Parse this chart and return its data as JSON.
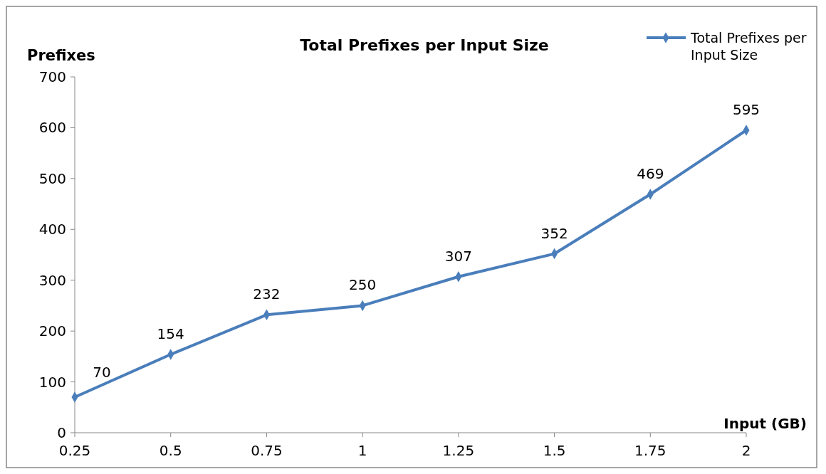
{
  "chart_data": {
    "type": "line",
    "title": "Total Prefixes per Input Size",
    "xlabel": "Input (GB)",
    "ylabel": "Prefixes",
    "x": [
      0.25,
      0.5,
      0.75,
      1,
      1.25,
      1.5,
      1.75,
      2
    ],
    "series": [
      {
        "name": "Total Prefixes per Input Size",
        "color": "#4a7ebb",
        "values": [
          70,
          154,
          232,
          250,
          307,
          352,
          469,
          595
        ]
      }
    ],
    "xlim": [
      0.25,
      2
    ],
    "xticks": [
      0.25,
      0.5,
      0.75,
      1,
      1.25,
      1.5,
      1.75,
      2
    ],
    "ylim": [
      0,
      700
    ],
    "yticks": [
      0,
      100,
      200,
      300,
      400,
      500,
      600,
      700
    ],
    "data_labels": true,
    "grid": false,
    "legend": "top right",
    "marker": "diamond",
    "line_style": "solid"
  }
}
